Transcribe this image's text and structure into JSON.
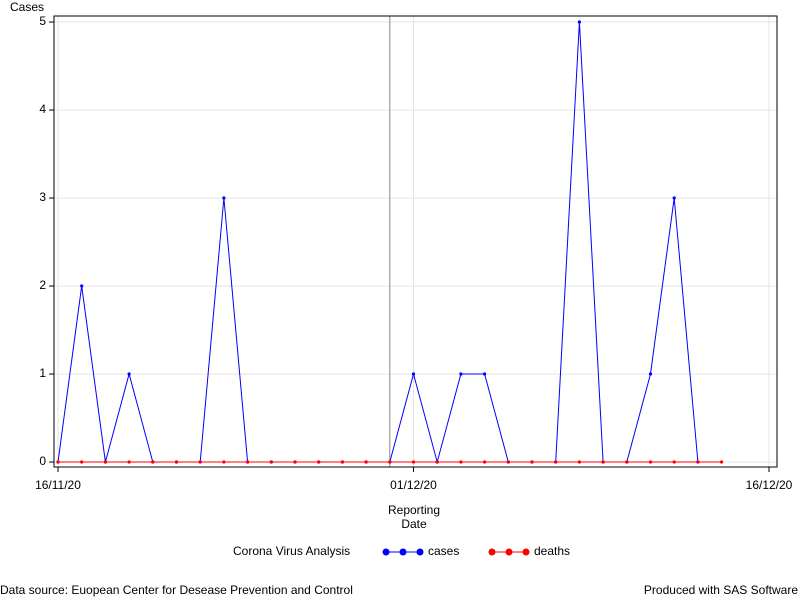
{
  "chart_data": {
    "type": "line",
    "y_label": "Cases",
    "x_label": "Reporting Date",
    "legend_title": "Corona Virus Analysis",
    "x": [
      "16/11/20",
      "17/11/20",
      "18/11/20",
      "19/11/20",
      "20/11/20",
      "21/11/20",
      "22/11/20",
      "23/11/20",
      "24/11/20",
      "25/11/20",
      "26/11/20",
      "27/11/20",
      "28/11/20",
      "29/11/20",
      "30/11/20",
      "01/12/20",
      "02/12/20",
      "03/12/20",
      "04/12/20",
      "05/12/20",
      "06/12/20",
      "07/12/20",
      "08/12/20",
      "09/12/20",
      "10/12/20",
      "11/12/20",
      "12/12/20",
      "13/12/20",
      "14/12/20"
    ],
    "series": [
      {
        "name": "cases",
        "color": "#0000ff",
        "values": [
          0,
          2,
          0,
          1,
          0,
          0,
          0,
          3,
          0,
          0,
          0,
          0,
          0,
          0,
          0,
          1,
          0,
          1,
          1,
          0,
          0,
          0,
          5,
          0,
          0,
          1,
          3,
          0,
          null
        ]
      },
      {
        "name": "deaths",
        "color": "#ff0000",
        "values": [
          0,
          0,
          0,
          0,
          0,
          0,
          0,
          0,
          0,
          0,
          0,
          0,
          0,
          0,
          0,
          0,
          0,
          0,
          0,
          0,
          0,
          0,
          0,
          0,
          0,
          0,
          0,
          0,
          0
        ]
      }
    ],
    "xlim": [
      "16/11/20",
      "16/12/20"
    ],
    "xticks": [
      "16/11/20",
      "01/12/20",
      "16/12/20"
    ],
    "ylim": [
      0,
      5
    ],
    "yticks": [
      0,
      1,
      2,
      3,
      4,
      5
    ],
    "grid": true,
    "reference_line_x": "30/11/20",
    "footnote_left": "Data source: Euopean Center for Desease Prevention and Control",
    "footnote_right": "Produced with SAS Software"
  }
}
